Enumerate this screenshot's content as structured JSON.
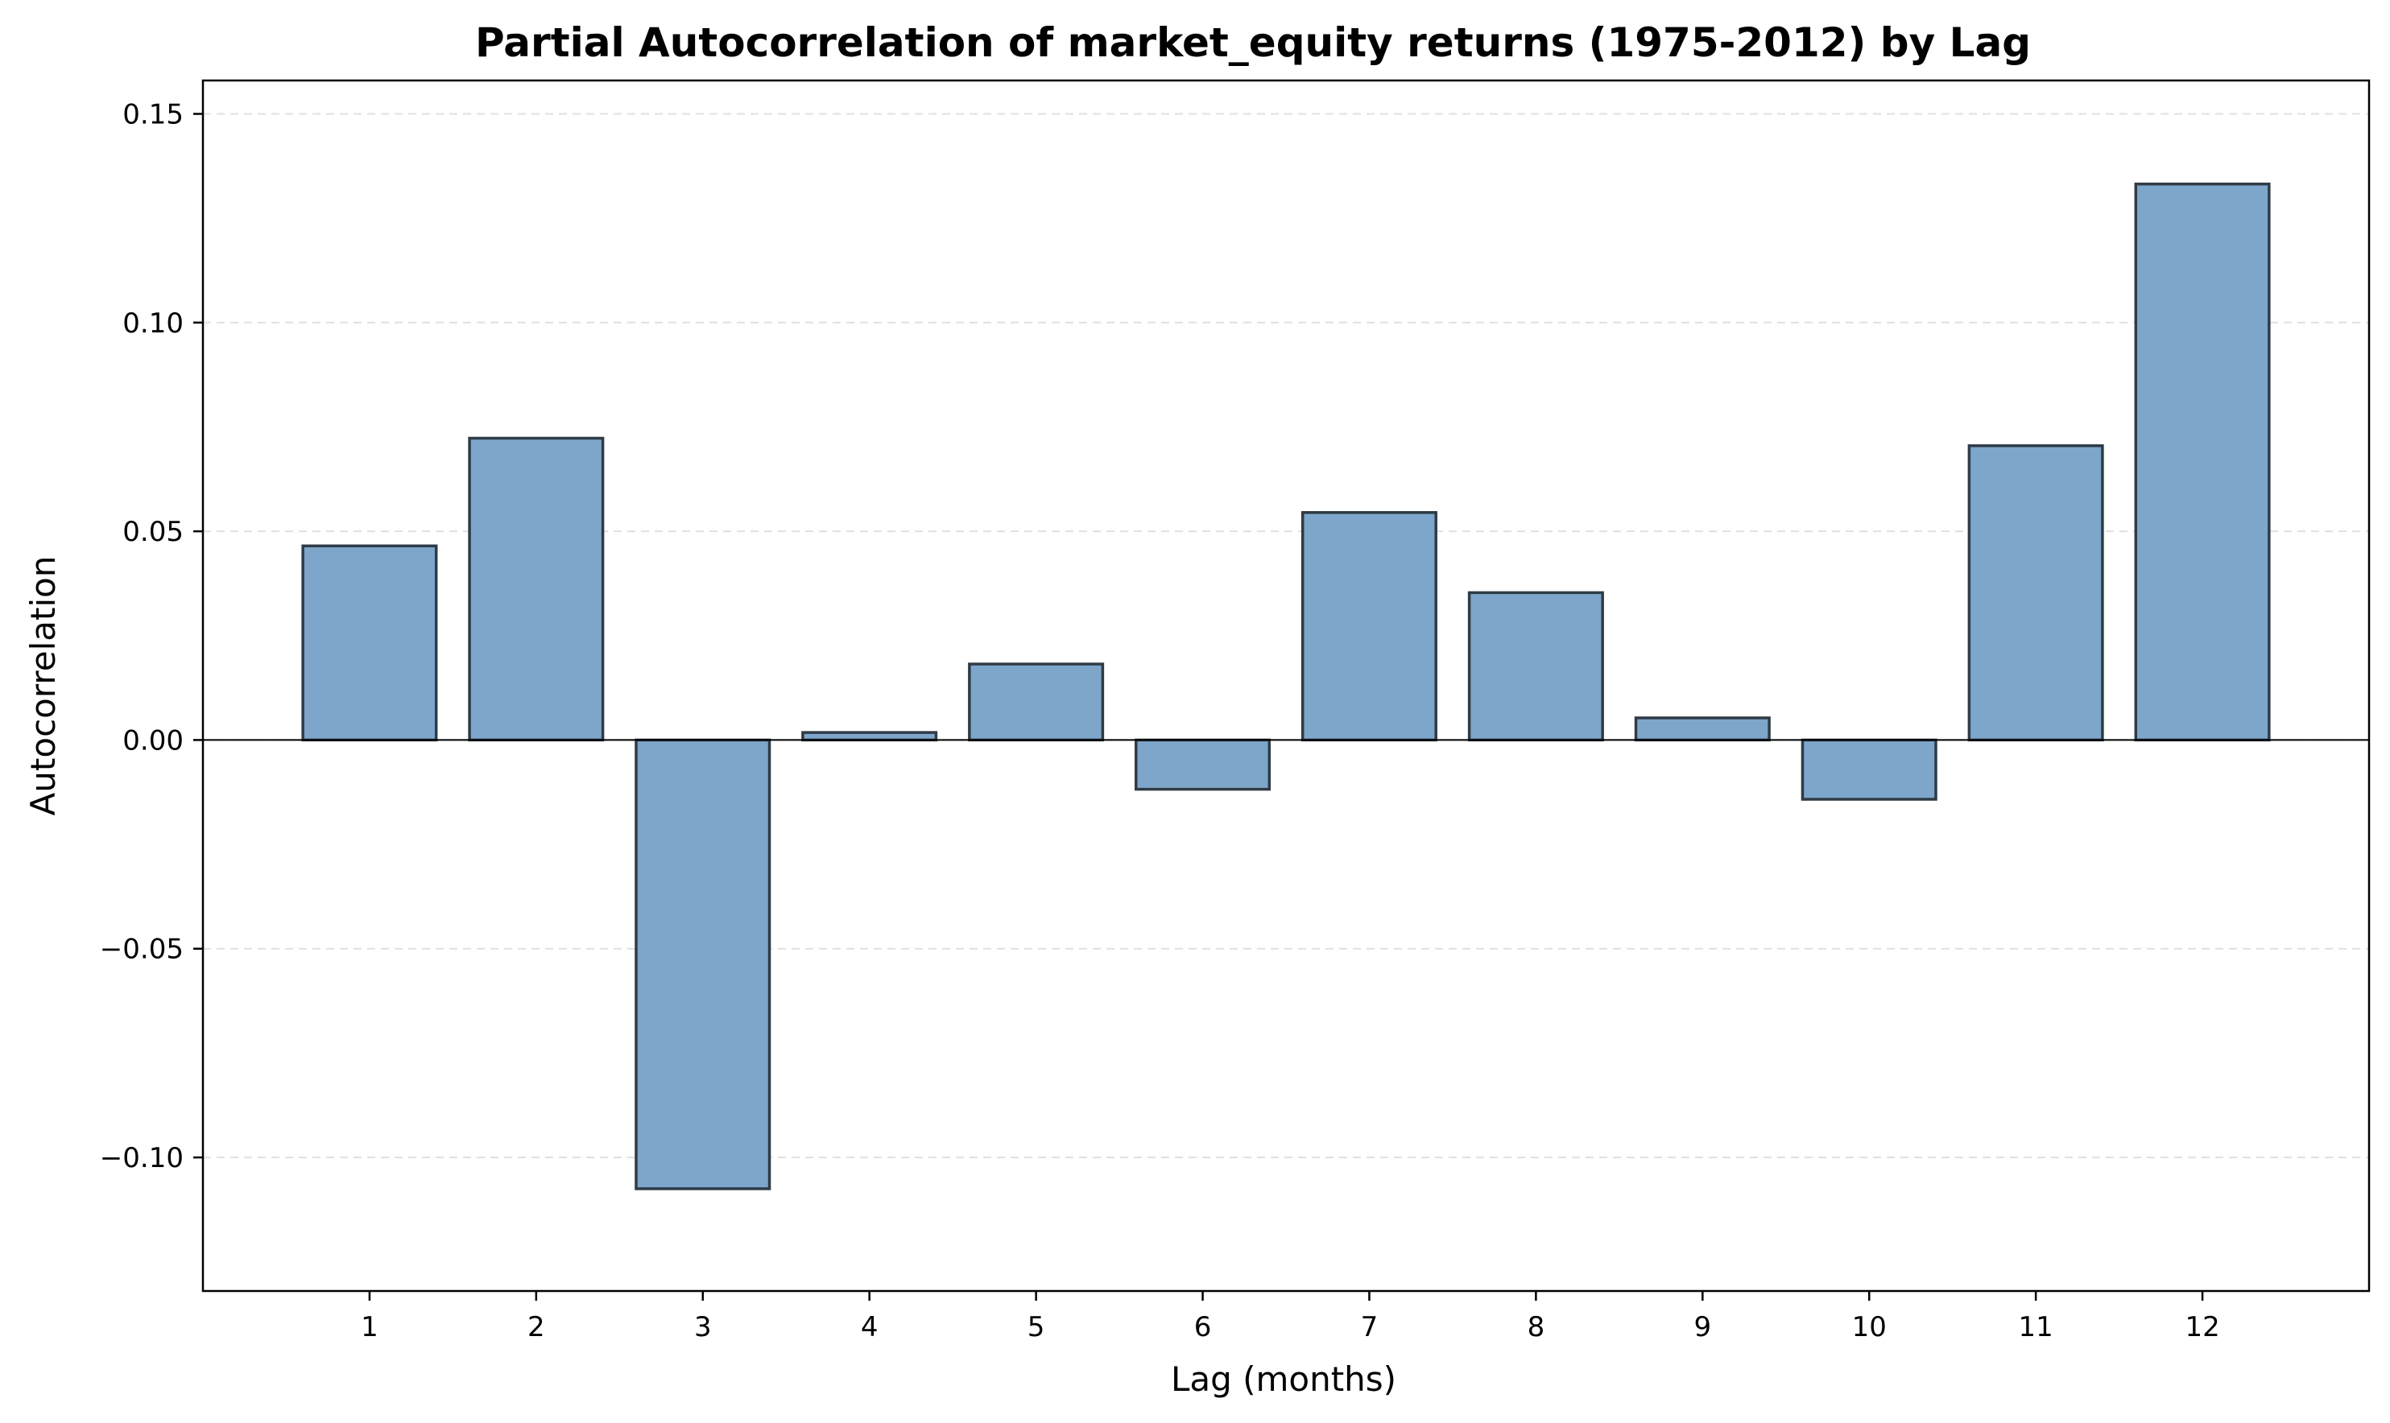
{
  "chart_data": {
    "type": "bar",
    "title": "Partial Autocorrelation of market_equity returns (1975-2012) by Lag",
    "xlabel": "Lag (months)",
    "ylabel": "Autocorrelation",
    "categories": [
      "1",
      "2",
      "3",
      "4",
      "5",
      "6",
      "7",
      "8",
      "9",
      "10",
      "11",
      "12"
    ],
    "values": [
      0.0465,
      0.0723,
      -0.1075,
      0.0018,
      0.0182,
      -0.0118,
      0.0545,
      0.0353,
      0.0053,
      -0.0142,
      0.0705,
      0.1332
    ],
    "ylim": [
      -0.132,
      0.158
    ],
    "yticks": [
      -0.1,
      -0.05,
      0.0,
      0.05,
      0.1,
      0.15
    ],
    "ytick_labels": [
      "−0.10",
      "−0.05",
      "0.00",
      "0.05",
      "0.10",
      "0.15"
    ],
    "grid": "y dashed",
    "zero_line": true,
    "colors": {
      "bar_fill": "#7ea6cb",
      "bar_edge": "#2f3b45",
      "grid": "#e0e0e0",
      "axis": "#000000"
    }
  }
}
